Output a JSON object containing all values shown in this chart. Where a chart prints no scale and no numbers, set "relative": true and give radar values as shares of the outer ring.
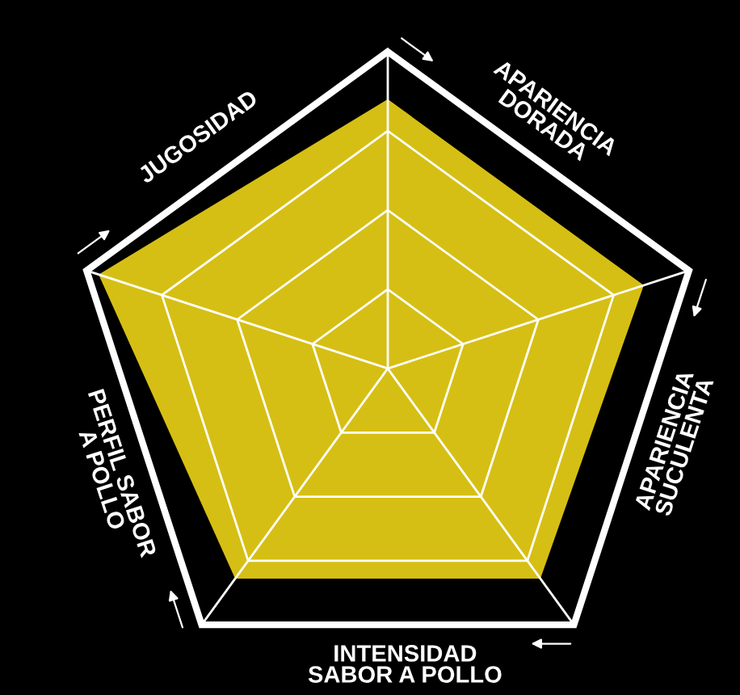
{
  "chart_data": {
    "type": "radar",
    "relative": true,
    "categories": [
      "APARIENCIA\nDORADA",
      "APARIENCIA\nSUCULENTA",
      "INTENSIDAD\nSABOR A POLLO",
      "PERFIL SABOR\nA POLLO",
      "JUGOSIDAD"
    ],
    "series": [
      {
        "color": "#d6bf14",
        "values": [
          0.85,
          0.85,
          0.82,
          0.82,
          0.96
        ]
      }
    ]
  }
}
